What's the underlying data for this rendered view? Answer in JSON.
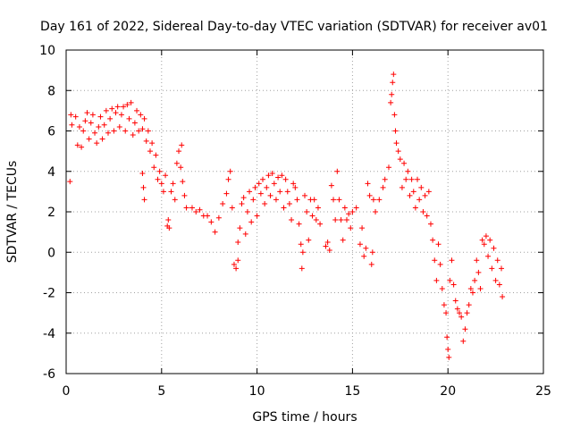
{
  "chart_data": {
    "type": "scatter",
    "title": "Day 161 of 2022, Sidereal Day-to-day VTEC variation (SDTVAR) for receiver av01",
    "xlabel": "GPS time / hours",
    "ylabel": "SDTVAR / TECUs",
    "xlim": [
      0,
      25
    ],
    "ylim": [
      -6,
      10
    ],
    "xticks": [
      0,
      5,
      10,
      15,
      20,
      25
    ],
    "yticks": [
      -6,
      -4,
      -2,
      0,
      2,
      4,
      6,
      8,
      10
    ],
    "grid": true,
    "marker": "plus",
    "color": "#ff0000",
    "series": [
      {
        "name": "SDTVAR",
        "points": [
          [
            0.2,
            3.5
          ],
          [
            0.25,
            6.8
          ],
          [
            0.3,
            6.3
          ],
          [
            0.5,
            6.7
          ],
          [
            0.6,
            5.3
          ],
          [
            0.7,
            6.2
          ],
          [
            0.8,
            5.2
          ],
          [
            0.9,
            6.0
          ],
          [
            1.0,
            6.5
          ],
          [
            1.1,
            6.9
          ],
          [
            1.2,
            5.6
          ],
          [
            1.3,
            6.4
          ],
          [
            1.4,
            6.8
          ],
          [
            1.5,
            5.9
          ],
          [
            1.6,
            5.4
          ],
          [
            1.7,
            6.2
          ],
          [
            1.8,
            6.7
          ],
          [
            1.9,
            5.6
          ],
          [
            2.0,
            6.3
          ],
          [
            2.1,
            7.0
          ],
          [
            2.2,
            5.9
          ],
          [
            2.3,
            6.6
          ],
          [
            2.4,
            7.1
          ],
          [
            2.5,
            6.0
          ],
          [
            2.6,
            6.9
          ],
          [
            2.7,
            7.2
          ],
          [
            2.8,
            6.2
          ],
          [
            2.9,
            6.8
          ],
          [
            3.0,
            7.2
          ],
          [
            3.1,
            6.0
          ],
          [
            3.2,
            7.3
          ],
          [
            3.3,
            6.6
          ],
          [
            3.4,
            7.4
          ],
          [
            3.5,
            5.8
          ],
          [
            3.6,
            6.4
          ],
          [
            3.7,
            7.0
          ],
          [
            3.8,
            6.0
          ],
          [
            3.9,
            6.8
          ],
          [
            4.0,
            6.1
          ],
          [
            4.1,
            6.6
          ],
          [
            4.2,
            5.5
          ],
          [
            4.3,
            6.0
          ],
          [
            4.4,
            5.0
          ],
          [
            4.5,
            5.4
          ],
          [
            4.6,
            4.2
          ],
          [
            4.7,
            4.8
          ],
          [
            4.8,
            3.6
          ],
          [
            4.9,
            4.0
          ],
          [
            4.0,
            3.9
          ],
          [
            4.05,
            3.2
          ],
          [
            4.1,
            2.6
          ],
          [
            5.0,
            3.4
          ],
          [
            5.1,
            3.0
          ],
          [
            5.2,
            3.8
          ],
          [
            5.3,
            1.3
          ],
          [
            5.35,
            1.6
          ],
          [
            5.4,
            1.2
          ],
          [
            5.5,
            3.0
          ],
          [
            5.6,
            3.4
          ],
          [
            5.7,
            2.6
          ],
          [
            5.8,
            4.4
          ],
          [
            5.9,
            5.0
          ],
          [
            6.0,
            4.2
          ],
          [
            6.05,
            5.3
          ],
          [
            6.1,
            3.5
          ],
          [
            6.2,
            2.8
          ],
          [
            6.3,
            2.2
          ],
          [
            6.6,
            2.2
          ],
          [
            6.8,
            2.0
          ],
          [
            7.0,
            2.1
          ],
          [
            7.2,
            1.8
          ],
          [
            7.4,
            1.8
          ],
          [
            7.6,
            1.5
          ],
          [
            7.8,
            1.0
          ],
          [
            8.0,
            1.7
          ],
          [
            8.2,
            2.4
          ],
          [
            8.4,
            2.9
          ],
          [
            8.5,
            3.6
          ],
          [
            8.6,
            4.0
          ],
          [
            8.7,
            2.2
          ],
          [
            8.8,
            -0.6
          ],
          [
            8.9,
            -0.8
          ],
          [
            9.0,
            -0.4
          ],
          [
            9.0,
            0.5
          ],
          [
            9.1,
            1.2
          ],
          [
            9.2,
            2.4
          ],
          [
            9.3,
            2.7
          ],
          [
            9.4,
            0.9
          ],
          [
            9.5,
            2.0
          ],
          [
            9.6,
            3.0
          ],
          [
            9.7,
            1.5
          ],
          [
            9.8,
            2.6
          ],
          [
            9.9,
            3.2
          ],
          [
            10.0,
            1.8
          ],
          [
            10.1,
            3.4
          ],
          [
            10.2,
            2.9
          ],
          [
            10.3,
            3.6
          ],
          [
            10.4,
            2.4
          ],
          [
            10.5,
            3.2
          ],
          [
            10.6,
            3.8
          ],
          [
            10.7,
            2.8
          ],
          [
            10.8,
            3.9
          ],
          [
            10.9,
            3.4
          ],
          [
            11.0,
            2.6
          ],
          [
            11.1,
            3.7
          ],
          [
            11.2,
            3.0
          ],
          [
            11.3,
            3.8
          ],
          [
            11.4,
            2.2
          ],
          [
            11.5,
            3.6
          ],
          [
            11.6,
            3.0
          ],
          [
            11.7,
            2.4
          ],
          [
            11.8,
            1.6
          ],
          [
            11.9,
            3.4
          ],
          [
            12.0,
            3.2
          ],
          [
            12.1,
            2.6
          ],
          [
            12.2,
            1.4
          ],
          [
            12.3,
            0.4
          ],
          [
            12.35,
            -0.8
          ],
          [
            12.4,
            0.0
          ],
          [
            12.5,
            2.8
          ],
          [
            12.6,
            2.0
          ],
          [
            12.7,
            0.6
          ],
          [
            12.8,
            2.6
          ],
          [
            12.9,
            1.8
          ],
          [
            13.0,
            2.6
          ],
          [
            13.1,
            1.6
          ],
          [
            13.2,
            2.2
          ],
          [
            13.3,
            1.4
          ],
          [
            13.6,
            0.3
          ],
          [
            13.7,
            0.5
          ],
          [
            13.8,
            0.1
          ],
          [
            13.9,
            3.3
          ],
          [
            14.0,
            2.6
          ],
          [
            14.1,
            1.6
          ],
          [
            14.2,
            4.0
          ],
          [
            14.3,
            2.6
          ],
          [
            14.4,
            1.6
          ],
          [
            14.5,
            0.6
          ],
          [
            14.6,
            2.2
          ],
          [
            14.7,
            1.6
          ],
          [
            14.8,
            1.9
          ],
          [
            14.9,
            1.2
          ],
          [
            15.0,
            2.0
          ],
          [
            15.2,
            2.2
          ],
          [
            15.4,
            0.4
          ],
          [
            15.5,
            1.2
          ],
          [
            15.6,
            -0.2
          ],
          [
            15.7,
            0.2
          ],
          [
            15.8,
            3.4
          ],
          [
            15.9,
            2.8
          ],
          [
            16.0,
            -0.6
          ],
          [
            16.05,
            0.0
          ],
          [
            16.1,
            2.6
          ],
          [
            16.2,
            2.0
          ],
          [
            16.4,
            2.6
          ],
          [
            16.6,
            3.2
          ],
          [
            16.7,
            3.6
          ],
          [
            16.9,
            4.2
          ],
          [
            17.0,
            7.4
          ],
          [
            17.05,
            7.8
          ],
          [
            17.1,
            8.4
          ],
          [
            17.15,
            8.8
          ],
          [
            17.2,
            6.8
          ],
          [
            17.25,
            6.0
          ],
          [
            17.3,
            5.4
          ],
          [
            17.4,
            5.0
          ],
          [
            17.5,
            4.6
          ],
          [
            17.6,
            3.2
          ],
          [
            17.7,
            4.4
          ],
          [
            17.8,
            3.6
          ],
          [
            17.9,
            4.0
          ],
          [
            18.0,
            2.8
          ],
          [
            18.1,
            3.6
          ],
          [
            18.2,
            3.0
          ],
          [
            18.3,
            2.2
          ],
          [
            18.4,
            3.6
          ],
          [
            18.5,
            2.6
          ],
          [
            18.6,
            3.2
          ],
          [
            18.7,
            2.0
          ],
          [
            18.8,
            2.8
          ],
          [
            18.9,
            1.8
          ],
          [
            19.0,
            3.0
          ],
          [
            19.1,
            1.4
          ],
          [
            19.2,
            0.6
          ],
          [
            19.3,
            -0.4
          ],
          [
            19.4,
            -1.4
          ],
          [
            19.5,
            0.4
          ],
          [
            19.6,
            -0.6
          ],
          [
            19.7,
            -1.8
          ],
          [
            19.8,
            -2.6
          ],
          [
            19.9,
            -3.0
          ],
          [
            19.95,
            -4.2
          ],
          [
            20.0,
            -4.8
          ],
          [
            20.05,
            -5.2
          ],
          [
            20.1,
            -1.4
          ],
          [
            20.2,
            -0.4
          ],
          [
            20.3,
            -1.6
          ],
          [
            20.4,
            -2.4
          ],
          [
            20.5,
            -2.8
          ],
          [
            20.6,
            -3.0
          ],
          [
            20.7,
            -3.2
          ],
          [
            20.8,
            -4.4
          ],
          [
            20.9,
            -3.8
          ],
          [
            21.0,
            -3.0
          ],
          [
            21.1,
            -2.6
          ],
          [
            21.2,
            -1.8
          ],
          [
            21.3,
            -2.0
          ],
          [
            21.4,
            -1.4
          ],
          [
            21.5,
            -0.4
          ],
          [
            21.6,
            -1.0
          ],
          [
            21.7,
            -1.8
          ],
          [
            21.8,
            0.6
          ],
          [
            21.9,
            0.4
          ],
          [
            22.0,
            0.8
          ],
          [
            22.1,
            -0.2
          ],
          [
            22.2,
            0.6
          ],
          [
            22.3,
            -0.8
          ],
          [
            22.4,
            0.2
          ],
          [
            22.5,
            -1.4
          ],
          [
            22.6,
            -0.4
          ],
          [
            22.7,
            -1.6
          ],
          [
            22.8,
            -0.8
          ],
          [
            22.85,
            -2.2
          ]
        ]
      }
    ]
  }
}
